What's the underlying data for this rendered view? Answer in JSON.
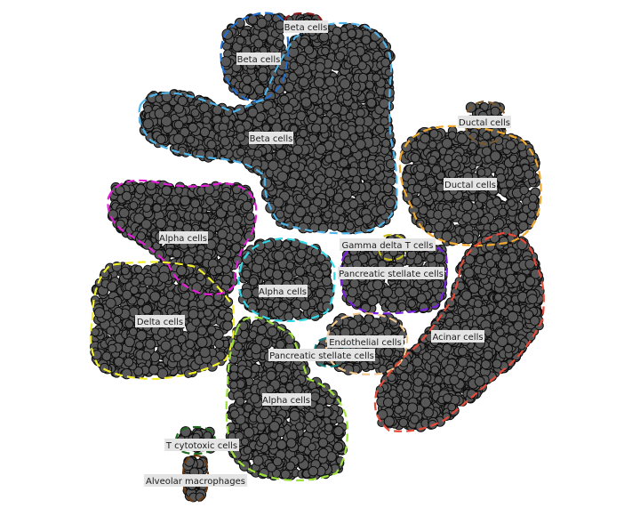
{
  "clusters": [
    {
      "label": "Beta cells",
      "color": "#8b1a1a"
    },
    {
      "label": "Beta cells",
      "color": "#1f6fd1"
    },
    {
      "label": "Beta cells",
      "color": "#4fb3e8"
    },
    {
      "label": "Ductal cells",
      "color": "#7a5a2e"
    },
    {
      "label": "Ductal cells",
      "color": "#f0a830"
    },
    {
      "label": "Alpha cells",
      "color": "#e01fd4"
    },
    {
      "label": "Gamma delta T cells",
      "color": "#c8c020"
    },
    {
      "label": "Pancreatic stellate cells",
      "color": "#7a1fe0"
    },
    {
      "label": "Alpha cells",
      "color": "#33d8e8"
    },
    {
      "label": "Delta cells",
      "color": "#f2ee2a"
    },
    {
      "label": "Endothelial cells",
      "color": "#f2c890"
    },
    {
      "label": "Pancreatic stellate cells",
      "color": "#1a8080"
    },
    {
      "label": "Acinar cells",
      "color": "#e84a3a"
    },
    {
      "label": "Alpha cells",
      "color": "#9de23a"
    },
    {
      "label": "T cytotoxic cells",
      "color": "#1f6a1f"
    },
    {
      "label": "Alveolar macrophages",
      "color": "#6b3a10"
    }
  ]
}
